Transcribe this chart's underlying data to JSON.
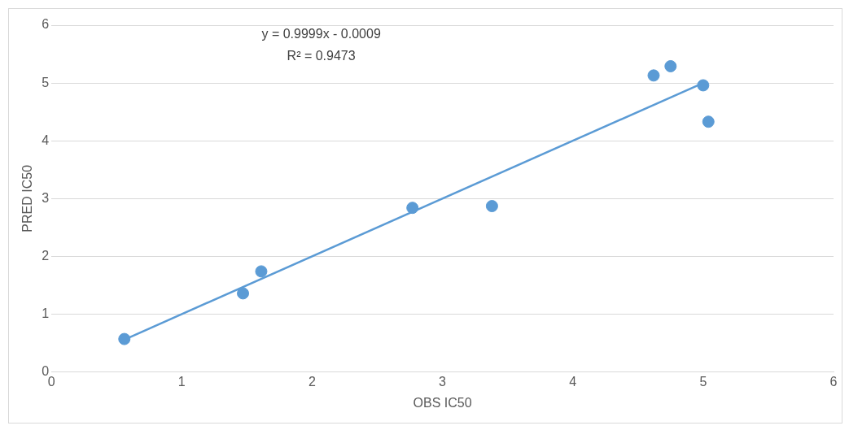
{
  "chart_data": {
    "type": "scatter",
    "xlabel": "OBS IC50",
    "ylabel": "PRED IC50",
    "annotations": [
      "y = 0.9999x - 0.0009",
      "R² = 0.9473"
    ],
    "xlim": [
      0,
      6
    ],
    "xticks": [
      0,
      1,
      2,
      3,
      4,
      5,
      6
    ],
    "ylim": [
      0,
      6
    ],
    "yticks": [
      0,
      1,
      2,
      3,
      4,
      5,
      6
    ],
    "grid": "y",
    "legend": false,
    "marker": "circle",
    "series": [
      {
        "type": "scatter",
        "color": "#5b9bd5",
        "x": [
          0.56,
          1.47,
          1.61,
          2.77,
          3.38,
          4.62,
          4.75,
          5.0,
          5.04
        ],
        "values": [
          0.57,
          1.36,
          1.74,
          2.84,
          2.87,
          5.13,
          5.29,
          4.96,
          4.33
        ]
      },
      {
        "type": "line",
        "color": "#5b9bd5",
        "x": [
          0.56,
          5.0
        ],
        "values": [
          0.56,
          5.0
        ],
        "marker": "none",
        "line_style": "solid"
      }
    ]
  }
}
